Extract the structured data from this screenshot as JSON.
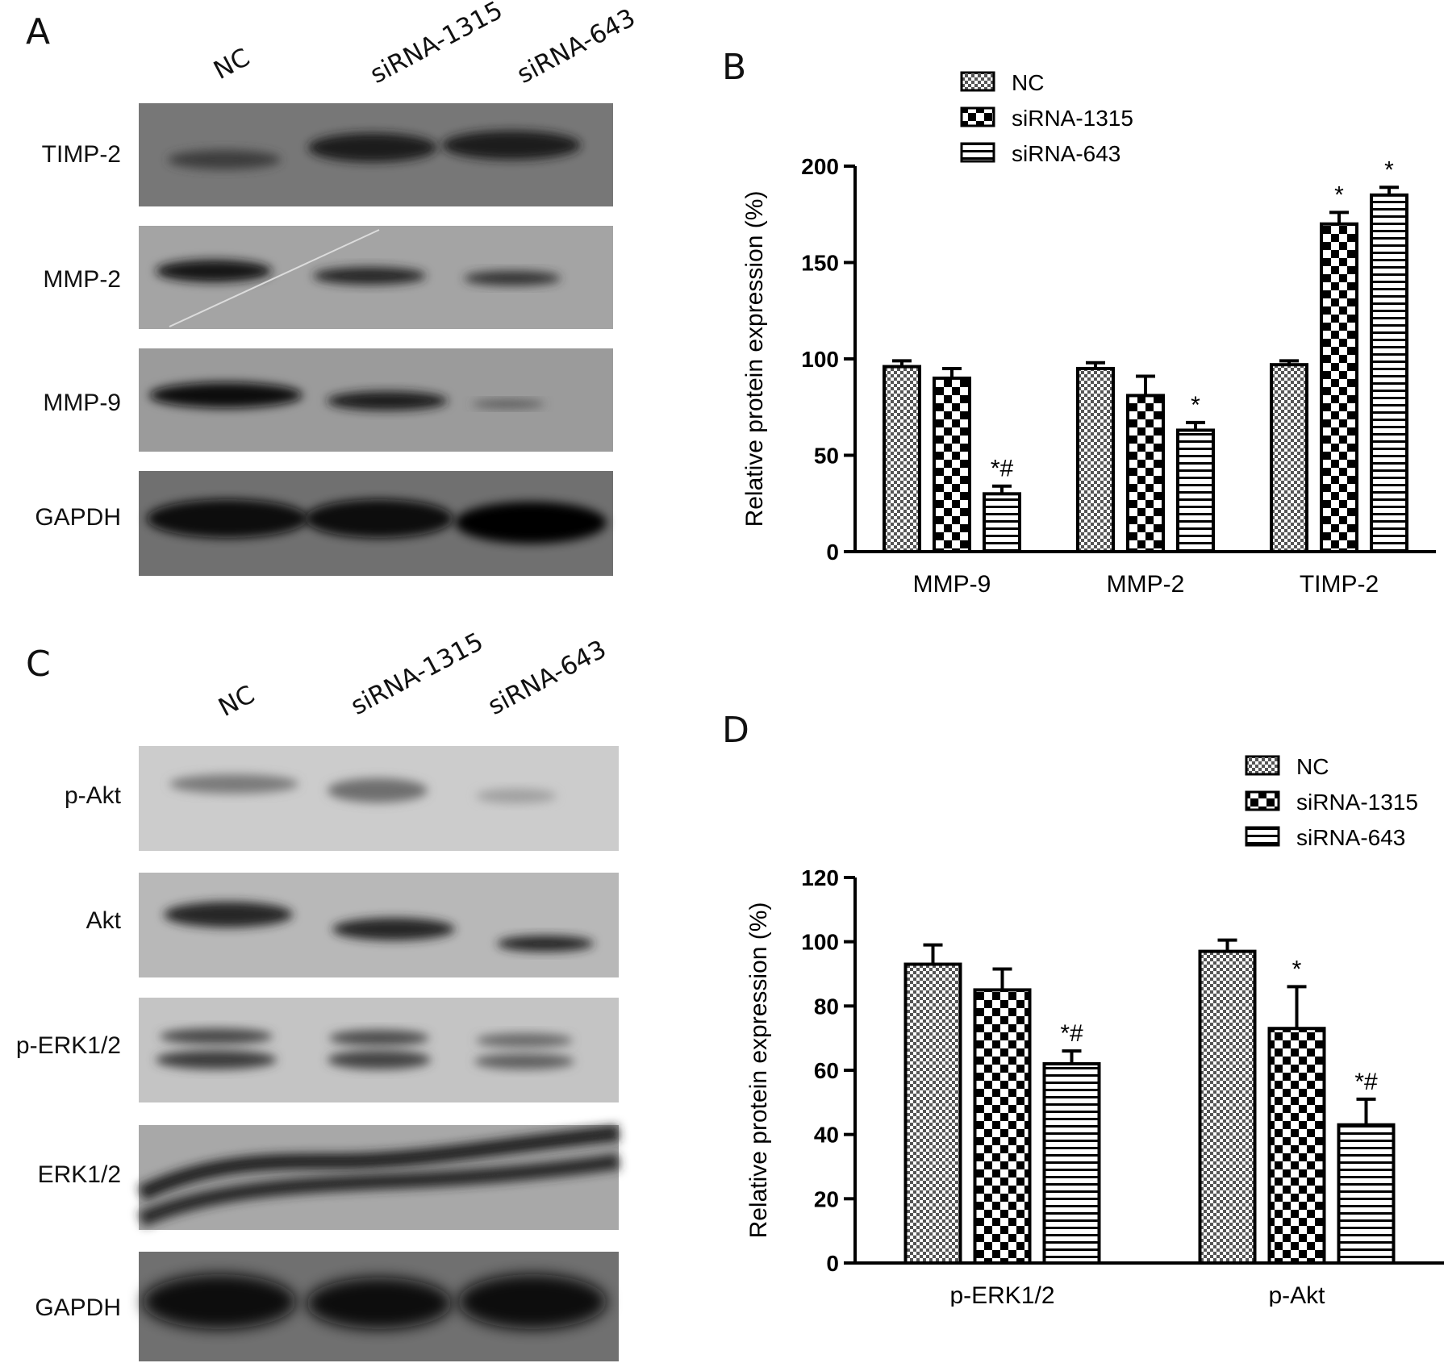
{
  "panels": {
    "A": {
      "letter": "A",
      "lanes": [
        "NC",
        "siRNA-1315",
        "siRNA-643"
      ],
      "rows": [
        "TIMP-2",
        "MMP-2",
        "MMP-9",
        "GAPDH"
      ]
    },
    "C": {
      "letter": "C",
      "lanes": [
        "NC",
        "siRNA-1315",
        "siRNA-643"
      ],
      "rows": [
        "p-Akt",
        "Akt",
        "p-ERK1/2",
        "ERK1/2",
        "GAPDH"
      ]
    }
  },
  "colors": {
    "axis": "#000000",
    "bar_fill": "#ffffff",
    "pattern_ink": "#000000",
    "blot_bg_light": "#c9c9c9",
    "blot_bg_dark": "#6a6a6a",
    "band": "#151515"
  },
  "chart_data": [
    {
      "panel_letter": "B",
      "type": "bar",
      "categories": [
        "MMP-9",
        "MMP-2",
        "TIMP-2"
      ],
      "series": [
        {
          "name": "NC",
          "pattern": "fine-checker",
          "values": [
            96,
            95,
            97
          ],
          "errors": [
            3,
            3,
            2
          ],
          "annotations": [
            "",
            "",
            ""
          ]
        },
        {
          "name": "siRNA-1315",
          "pattern": "coarse-checker",
          "values": [
            90,
            81,
            170
          ],
          "errors": [
            5,
            10,
            6
          ],
          "annotations": [
            "",
            "",
            "*"
          ]
        },
        {
          "name": "siRNA-643",
          "pattern": "horizontal-lines",
          "values": [
            30,
            63,
            185
          ],
          "errors": [
            4,
            4,
            4
          ],
          "annotations": [
            "*#",
            "*",
            "*"
          ]
        }
      ],
      "ylabel": "Relative protein expression (%)",
      "xlabel": "",
      "ylim": [
        0,
        200
      ],
      "yticks": [
        0,
        50,
        100,
        150,
        200
      ],
      "legend": "top"
    },
    {
      "panel_letter": "D",
      "type": "bar",
      "categories": [
        "p-ERK1/2",
        "p-Akt"
      ],
      "series": [
        {
          "name": "NC",
          "pattern": "fine-checker",
          "values": [
            93,
            97
          ],
          "errors": [
            6,
            3.5
          ],
          "annotations": [
            "",
            ""
          ]
        },
        {
          "name": "siRNA-1315",
          "pattern": "coarse-checker",
          "values": [
            85,
            73
          ],
          "errors": [
            6.5,
            13
          ],
          "annotations": [
            "",
            "*"
          ]
        },
        {
          "name": "siRNA-643",
          "pattern": "horizontal-lines",
          "values": [
            62,
            43
          ],
          "errors": [
            4,
            8
          ],
          "annotations": [
            "*#",
            "*#"
          ]
        }
      ],
      "ylabel": "Relative protein expression (%)",
      "xlabel": "",
      "ylim": [
        0,
        120
      ],
      "yticks": [
        0,
        20,
        40,
        60,
        80,
        100,
        120
      ],
      "legend": "top-right"
    }
  ]
}
